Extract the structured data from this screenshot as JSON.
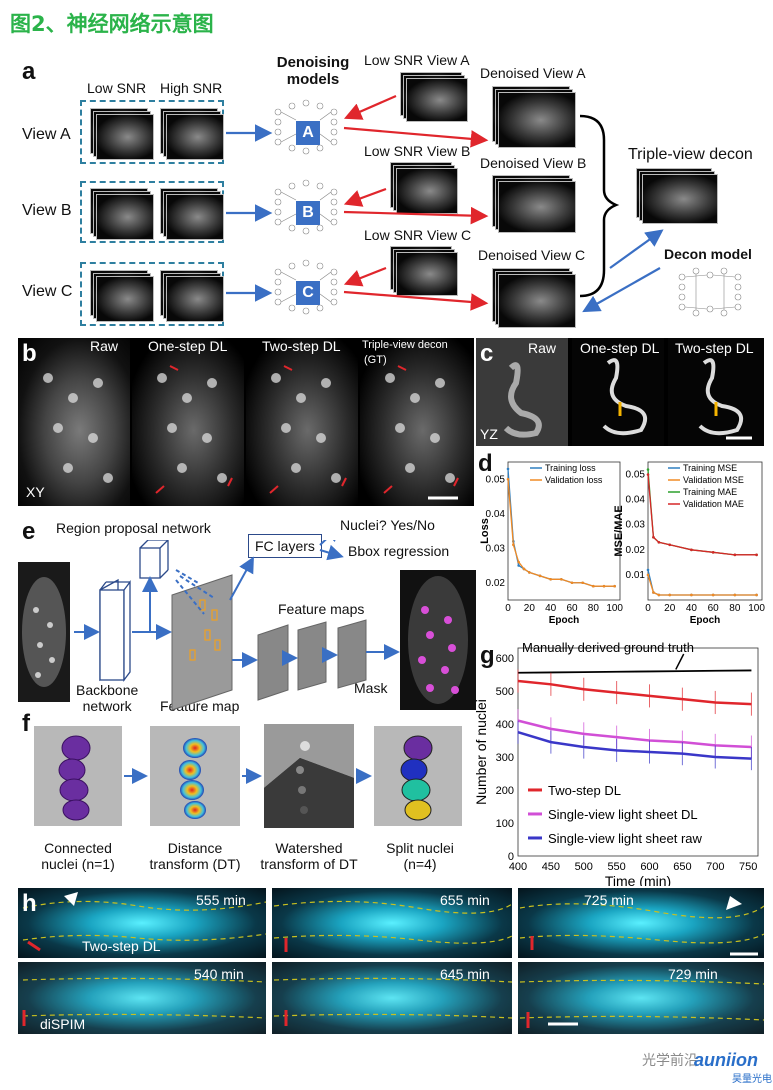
{
  "header": {
    "title": "图2、神经网络示意图"
  },
  "panel_a": {
    "letter": "a",
    "col_low": "Low SNR",
    "col_high": "High SNR",
    "views": [
      "View A",
      "View B",
      "View C"
    ],
    "denoise_title_1": "Denoising",
    "denoise_title_2": "models",
    "model_letters": [
      "A",
      "B",
      "C"
    ],
    "low_snr_labels": [
      "Low SNR View A",
      "Low SNR View B",
      "Low SNR View C"
    ],
    "denoised_labels": [
      "Denoised View A",
      "Denoised View B",
      "Denoised View C"
    ],
    "triple_view": "Triple-view decon",
    "decon_model": "Decon model"
  },
  "panel_b": {
    "letter": "b",
    "labels": [
      "Raw",
      "One-step DL",
      "Two-step DL",
      "Triple-view  decon"
    ],
    "gt": "(GT)",
    "plane": "XY"
  },
  "panel_c": {
    "letter": "c",
    "labels": [
      "Raw",
      "One-step DL",
      "Two-step DL"
    ],
    "plane": "YZ"
  },
  "panel_d": {
    "letter": "d",
    "left": {
      "ylabel": "Loss",
      "xlabel": "Epoch",
      "legend": [
        "Training loss",
        "Validation loss"
      ],
      "yticks": [
        "0.05",
        "0.04",
        "0.03",
        "0.02"
      ],
      "xticks": [
        "0",
        "20",
        "40",
        "60",
        "80",
        "100"
      ]
    },
    "right": {
      "ylabel": "MSE/MAE",
      "xlabel": "Epoch",
      "legend": [
        "Training MSE",
        "Validation MSE",
        "Training MAE",
        "Validation MAE"
      ],
      "yticks": [
        "0.05",
        "0.04",
        "0.03",
        "0.02",
        "0.01"
      ],
      "xticks": [
        "0",
        "20",
        "40",
        "60",
        "80",
        "100"
      ]
    },
    "colors": {
      "training": "#2f7fc1",
      "validation": "#f08a24",
      "training_mae": "#2ca02c",
      "validation_mae": "#d62728"
    }
  },
  "panel_e": {
    "letter": "e",
    "rpn": "Region proposal network",
    "fc": "FC layers",
    "nuclei": "Nuclei? Yes/No",
    "bbox": "Bbox regression",
    "feature_maps": "Feature maps",
    "backbone_1": "Backbone",
    "backbone_2": "network",
    "feature_map": "Feature map",
    "mask": "Mask"
  },
  "panel_f": {
    "letter": "f",
    "captions": [
      [
        "Connected",
        "nuclei (n=1)"
      ],
      [
        "Distance",
        "transform (DT)"
      ],
      [
        "Watershed",
        "transform of DT"
      ],
      [
        "Split nuclei",
        "(n=4)"
      ]
    ]
  },
  "panel_g": {
    "letter": "g",
    "annotation": "Manually derived ground truth",
    "ylabel": "Number of nuclei",
    "xlabel": "Time (min)",
    "yticks": [
      "600",
      "500",
      "400",
      "300",
      "200",
      "100",
      "0"
    ],
    "xticks": [
      "400",
      "450",
      "500",
      "550",
      "600",
      "650",
      "700",
      "750"
    ],
    "legend": [
      "Two-step DL",
      "Single-view light sheet DL",
      "Single-view light sheet raw"
    ],
    "colors": {
      "ground_truth": "#000000",
      "two_step": "#e0262c",
      "sv_dl": "#d14fd6",
      "sv_raw": "#3a37c8"
    }
  },
  "panel_h": {
    "letter": "h",
    "top_times": [
      "555  min",
      "655  min",
      "725  min"
    ],
    "bottom_times": [
      "540  min",
      "645  min",
      "729  min"
    ],
    "top_label": "Two-step DL",
    "bottom_label": "diSPIM"
  },
  "watermark": {
    "text": "光学前沿",
    "logo_text": "auniion",
    "logo_sub": "昊量光电"
  },
  "chart_data": [
    {
      "type": "line",
      "title": "",
      "xlabel": "Epoch",
      "ylabel": "Loss",
      "xlim": [
        0,
        105
      ],
      "ylim": [
        0.015,
        0.055
      ],
      "series": [
        {
          "name": "Training loss",
          "x": [
            0,
            5,
            10,
            15,
            20,
            30,
            40,
            50,
            60,
            70,
            80,
            90,
            100
          ],
          "values": [
            0.053,
            0.032,
            0.025,
            0.024,
            0.023,
            0.022,
            0.021,
            0.021,
            0.02,
            0.02,
            0.019,
            0.019,
            0.019
          ]
        },
        {
          "name": "Validation loss",
          "x": [
            0,
            5,
            10,
            15,
            20,
            30,
            40,
            50,
            60,
            70,
            80,
            90,
            100
          ],
          "values": [
            0.05,
            0.031,
            0.026,
            0.024,
            0.023,
            0.022,
            0.021,
            0.021,
            0.02,
            0.02,
            0.019,
            0.019,
            0.019
          ]
        }
      ]
    },
    {
      "type": "line",
      "title": "",
      "xlabel": "Epoch",
      "ylabel": "MSE/MAE",
      "xlim": [
        0,
        105
      ],
      "ylim": [
        0.0,
        0.055
      ],
      "series": [
        {
          "name": "Training MSE",
          "x": [
            0,
            5,
            10,
            20,
            40,
            60,
            80,
            100
          ],
          "values": [
            0.012,
            0.003,
            0.002,
            0.002,
            0.002,
            0.002,
            0.002,
            0.002
          ]
        },
        {
          "name": "Validation MSE",
          "x": [
            0,
            5,
            10,
            20,
            40,
            60,
            80,
            100
          ],
          "values": [
            0.01,
            0.003,
            0.002,
            0.002,
            0.002,
            0.002,
            0.002,
            0.002
          ]
        },
        {
          "name": "Training MAE",
          "x": [
            0,
            5,
            10,
            20,
            40,
            60,
            80,
            100
          ],
          "values": [
            0.052,
            0.025,
            0.023,
            0.022,
            0.02,
            0.019,
            0.018,
            0.018
          ]
        },
        {
          "name": "Validation MAE",
          "x": [
            0,
            5,
            10,
            20,
            40,
            60,
            80,
            100
          ],
          "values": [
            0.05,
            0.025,
            0.023,
            0.022,
            0.02,
            0.019,
            0.018,
            0.018
          ]
        }
      ]
    },
    {
      "type": "line",
      "title": "",
      "xlabel": "Time (min)",
      "ylabel": "Number of nuclei",
      "xlim": [
        400,
        765
      ],
      "ylim": [
        0,
        630
      ],
      "annotation": "Manually derived ground truth",
      "series": [
        {
          "name": "Manually derived ground truth",
          "x": [
            400,
            450,
            500,
            550,
            600,
            650,
            700,
            755
          ],
          "values": [
            555,
            556,
            557,
            558,
            559,
            560,
            561,
            562
          ]
        },
        {
          "name": "Two-step DL",
          "x": [
            400,
            450,
            500,
            550,
            600,
            650,
            700,
            755
          ],
          "values": [
            530,
            520,
            505,
            495,
            485,
            475,
            465,
            460
          ]
        },
        {
          "name": "Single-view light sheet DL",
          "x": [
            400,
            450,
            500,
            550,
            600,
            650,
            700,
            755
          ],
          "values": [
            410,
            385,
            370,
            360,
            350,
            345,
            335,
            330
          ]
        },
        {
          "name": "Single-view light sheet raw",
          "x": [
            400,
            450,
            500,
            550,
            600,
            650,
            700,
            755
          ],
          "values": [
            375,
            345,
            330,
            320,
            315,
            310,
            300,
            295
          ]
        }
      ]
    }
  ]
}
